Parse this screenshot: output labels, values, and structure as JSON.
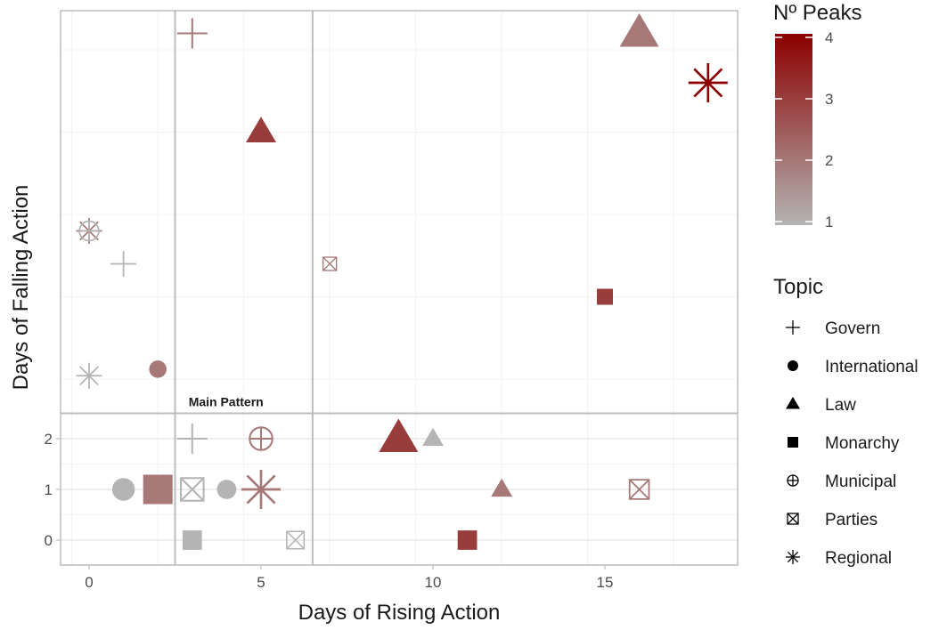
{
  "chart_data": {
    "type": "scatter",
    "xlabel": "Days of Rising Action",
    "ylabel": "Days of Falling Action",
    "xlim": [
      -0.8,
      18.9
    ],
    "x_ticks": [
      0,
      5,
      10,
      15
    ],
    "y_ticks": [
      0,
      1,
      2
    ],
    "y_axis_note": "y axis is broken: values 0-2 are drawn on a linear lower band; larger values are drawn in the upper band without tick labels",
    "background": "white",
    "grid": true,
    "pattern_lines": {
      "x": [
        2.5,
        6.5
      ],
      "y": [
        2.5
      ]
    },
    "annotations": [
      {
        "text": "Main Pattern",
        "x": 4.5,
        "y": 2.6
      }
    ],
    "color_legend": {
      "title": "Nº Peaks",
      "min": 1,
      "max": 4,
      "ticks": [
        "1",
        "2",
        "3",
        "4"
      ],
      "low_color": "#b4b4b4",
      "high_color": "#8b0000"
    },
    "shape_legend": {
      "title": "Topic",
      "entries": [
        {
          "label": "Govern",
          "shape": "plus"
        },
        {
          "label": "International",
          "shape": "circle"
        },
        {
          "label": "Law",
          "shape": "triangle"
        },
        {
          "label": "Monarchy",
          "shape": "square"
        },
        {
          "label": "Municipal",
          "shape": "circle-plus"
        },
        {
          "label": "Parties",
          "shape": "square-x"
        },
        {
          "label": "Regional",
          "shape": "asterisk"
        }
      ]
    },
    "points": [
      {
        "x": 3,
        "y": 2,
        "topic": "Govern",
        "peaks": 1,
        "size": 2
      },
      {
        "x": 5,
        "y": 2,
        "topic": "Municipal",
        "peaks": 2,
        "size": 2
      },
      {
        "x": 9,
        "y": 2,
        "topic": "Law",
        "peaks": 3,
        "size": 3
      },
      {
        "x": 10,
        "y": 2,
        "topic": "Law",
        "peaks": 1,
        "size": 1
      },
      {
        "x": 1,
        "y": 1,
        "topic": "International",
        "peaks": 1,
        "size": 2
      },
      {
        "x": 2,
        "y": 1,
        "topic": "Monarchy",
        "peaks": 2,
        "size": 3
      },
      {
        "x": 3,
        "y": 1,
        "topic": "Parties",
        "peaks": 1,
        "size": 2
      },
      {
        "x": 4,
        "y": 1,
        "topic": "International",
        "peaks": 1,
        "size": 1.5
      },
      {
        "x": 5,
        "y": 1,
        "topic": "Regional",
        "peaks": 2,
        "size": 3
      },
      {
        "x": 12,
        "y": 1,
        "topic": "Law",
        "peaks": 2,
        "size": 1
      },
      {
        "x": 16,
        "y": 1,
        "topic": "Parties",
        "peaks": 2,
        "size": 1.5
      },
      {
        "x": 3,
        "y": 0,
        "topic": "Monarchy",
        "peaks": 1,
        "size": 1.5
      },
      {
        "x": 6,
        "y": 0,
        "topic": "Parties",
        "peaks": 1,
        "size": 1.2
      },
      {
        "x": 11,
        "y": 0,
        "topic": "Monarchy",
        "peaks": 3,
        "size": 1.5
      },
      {
        "x": 3,
        "y": 14,
        "topic": "Govern",
        "peaks": 2,
        "size": 2
      },
      {
        "x": 5,
        "y": 11,
        "topic": "Law",
        "peaks": 3,
        "size": 2
      },
      {
        "x": 0,
        "y": 8,
        "topic": "Regional",
        "peaks": 2,
        "size": 1.5
      },
      {
        "x": 0,
        "y": 8,
        "topic": "Municipal",
        "peaks": 1,
        "size": 1.5
      },
      {
        "x": 1,
        "y": 7,
        "topic": "Govern",
        "peaks": 1,
        "size": 1.5
      },
      {
        "x": 7,
        "y": 7,
        "topic": "Parties",
        "peaks": 2,
        "size": 0.6
      },
      {
        "x": 15,
        "y": 6,
        "topic": "Monarchy",
        "peaks": 3,
        "size": 1
      },
      {
        "x": 2,
        "y": 3.8,
        "topic": "International",
        "peaks": 2,
        "size": 1.2
      },
      {
        "x": 0,
        "y": 3.6,
        "topic": "Regional",
        "peaks": 1,
        "size": 1.5
      },
      {
        "x": 16,
        "y": 14,
        "topic": "Law",
        "peaks": 2,
        "size": 3
      },
      {
        "x": 18,
        "y": 12.5,
        "topic": "Regional",
        "peaks": 4,
        "size": 3
      }
    ]
  }
}
